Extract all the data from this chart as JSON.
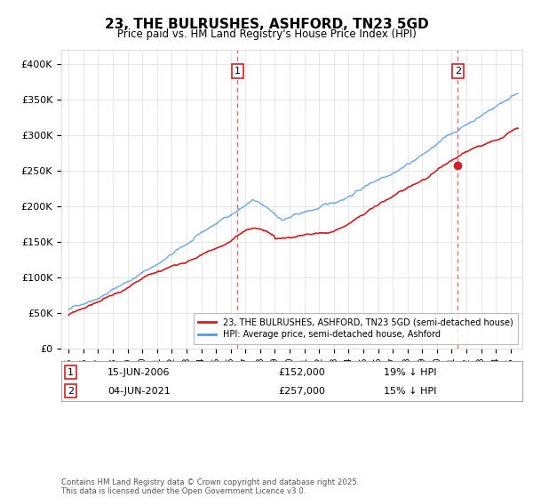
{
  "title": "23, THE BULRUSHES, ASHFORD, TN23 5GD",
  "subtitle": "Price paid vs. HM Land Registry's House Price Index (HPI)",
  "legend_line1": "23, THE BULRUSHES, ASHFORD, TN23 5GD (semi-detached house)",
  "legend_line2": "HPI: Average price, semi-detached house, Ashford",
  "sale1_date": "15-JUN-2006",
  "sale1_price": 152000,
  "sale1_label": "19% ↓ HPI",
  "sale2_date": "04-JUN-2021",
  "sale2_price": 257000,
  "sale2_label": "15% ↓ HPI",
  "sale1_year": 2006.45,
  "sale2_year": 2021.42,
  "ylim_min": 0,
  "ylim_max": 420000,
  "yticks": [
    0,
    50000,
    100000,
    150000,
    200000,
    250000,
    300000,
    350000,
    400000
  ],
  "ytick_labels": [
    "£0",
    "£50K",
    "£100K",
    "£150K",
    "£200K",
    "£250K",
    "£300K",
    "£350K",
    "£400K"
  ],
  "xlim_start": 1994.5,
  "xlim_end": 2025.8,
  "hpi_color": "#5599dd",
  "property_color": "#cc2222",
  "dashed_color": "#dd4444",
  "background_color": "#ffffff",
  "grid_color": "#dddddd",
  "footer": "Contains HM Land Registry data © Crown copyright and database right 2025.\nThis data is licensed under the Open Government Licence v3.0."
}
